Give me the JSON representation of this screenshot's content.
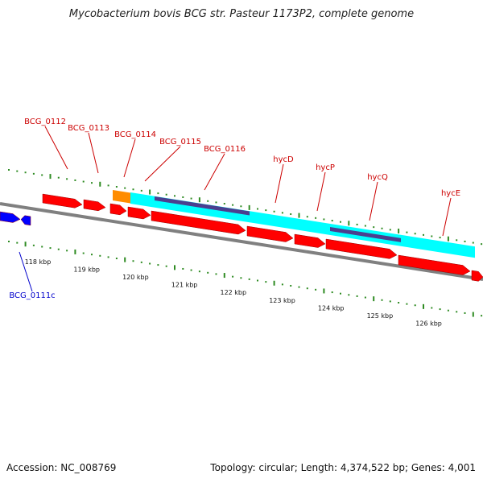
{
  "title": "Mycobacterium bovis BCG str. Pasteur 1173P2, complete genome",
  "footer": {
    "accession": "Accession: NC_008769",
    "stats": "Topology: circular; Length: 4,374,522 bp; Genes: 4,001"
  },
  "colors": {
    "forward_gene": "#ff0000",
    "reverse_gene": "#0000ff",
    "cds_feature": "#00ffff",
    "domain_feature": "#4b3f8f",
    "misc_feature": "#ff8c00",
    "backbone": "#808080",
    "tick": "#2e8b22",
    "forward_label": "#cc0000",
    "reverse_label": "#0000cc"
  },
  "scale": {
    "unit": "kbp",
    "labels": [
      "118 kbp",
      "119 kbp",
      "120 kbp",
      "121 kbp",
      "122 kbp",
      "123 kbp",
      "124 kbp",
      "125 kbp",
      "126 kbp"
    ]
  },
  "genes": [
    {
      "name": "BCG_0112",
      "strand": "forward"
    },
    {
      "name": "BCG_0113",
      "strand": "forward"
    },
    {
      "name": "BCG_0114",
      "strand": "forward"
    },
    {
      "name": "BCG_0115",
      "strand": "forward"
    },
    {
      "name": "BCG_0116",
      "strand": "forward"
    },
    {
      "name": "hycD",
      "strand": "forward"
    },
    {
      "name": "hycP",
      "strand": "forward"
    },
    {
      "name": "hycQ",
      "strand": "forward"
    },
    {
      "name": "hycE",
      "strand": "forward"
    },
    {
      "name": "BCG_0111c",
      "strand": "reverse"
    }
  ]
}
